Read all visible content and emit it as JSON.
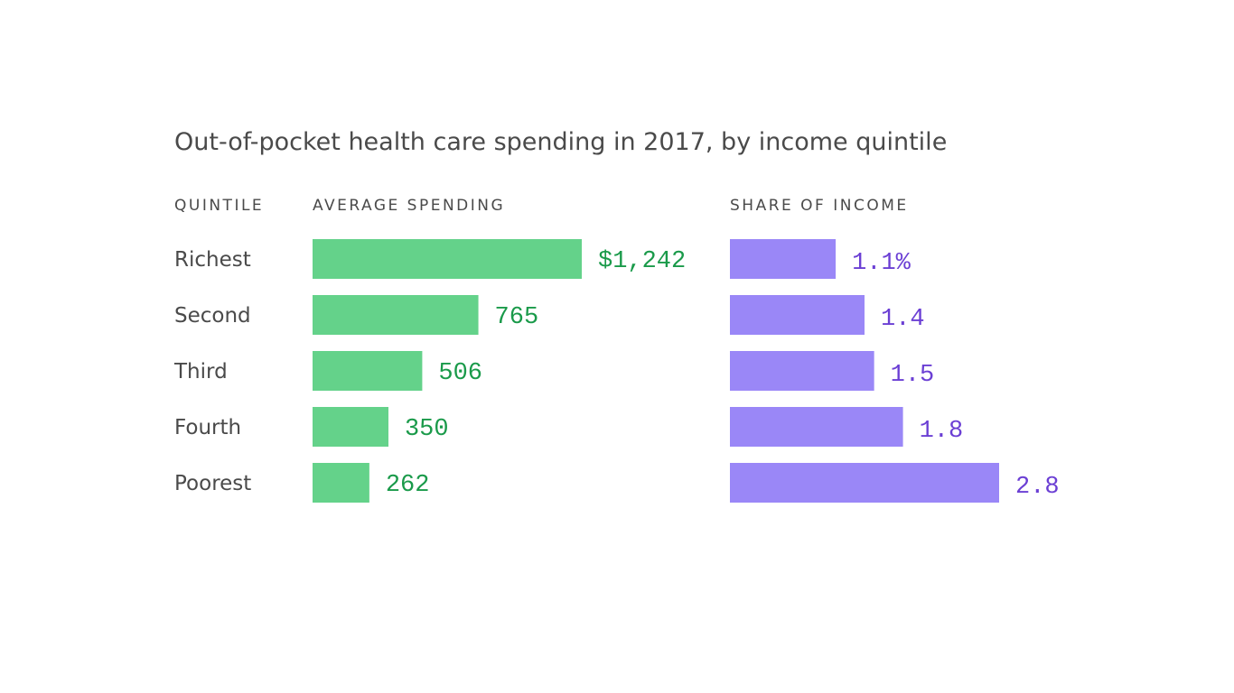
{
  "title": "Out-of-pocket health care spending in 2017, by income quintile",
  "colors": {
    "spending": "#64d28a",
    "spending_label": "#1a9a4a",
    "share": "#9a87f7",
    "share_label": "#6b3fd4",
    "text": "#4a4a4a"
  },
  "chart_data": [
    {
      "type": "bar",
      "orientation": "horizontal",
      "column_header": "AVERAGE SPENDING",
      "category_header": "QUINTILE",
      "categories": [
        "Richest",
        "Second",
        "Third",
        "Fourth",
        "Poorest"
      ],
      "values": [
        1242,
        765,
        506,
        350,
        262
      ],
      "value_labels": [
        "$1,242",
        "765",
        "506",
        "350",
        "262"
      ],
      "xlim": [
        0,
        1242
      ]
    },
    {
      "type": "bar",
      "orientation": "horizontal",
      "column_header": "SHARE OF INCOME",
      "categories": [
        "Richest",
        "Second",
        "Third",
        "Fourth",
        "Poorest"
      ],
      "values": [
        1.1,
        1.4,
        1.5,
        1.8,
        2.8
      ],
      "value_labels": [
        "1.1%",
        "1.4",
        "1.5",
        "1.8",
        "2.8"
      ],
      "xlim": [
        0,
        2.8
      ]
    }
  ]
}
